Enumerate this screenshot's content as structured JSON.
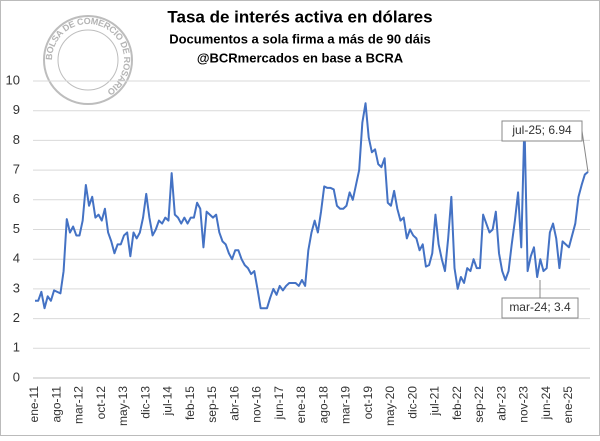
{
  "chart_data": {
    "type": "line",
    "title": "Tasa de interés activa en dólares",
    "subtitle": "Documentos a sola firma a más de 90 dáis",
    "source": "@BCRmercados en base a BCRA",
    "logo_text": "BOLSA DE COMERCIO DE ROSARIO",
    "color": "#4472c4",
    "ylim": [
      0,
      10
    ],
    "yticks": [
      0,
      1,
      2,
      3,
      4,
      5,
      6,
      7,
      8,
      9,
      10
    ],
    "grid": true,
    "categories": [
      "ene-11",
      null,
      null,
      null,
      null,
      null,
      null,
      "ago-11",
      null,
      null,
      null,
      null,
      null,
      null,
      "mar-12",
      null,
      null,
      null,
      null,
      null,
      null,
      "oct-12",
      null,
      null,
      null,
      null,
      null,
      null,
      "may-13",
      null,
      null,
      null,
      null,
      null,
      null,
      "dic-13",
      null,
      null,
      null,
      null,
      null,
      null,
      "jul-14",
      null,
      null,
      null,
      null,
      null,
      null,
      "feb-15",
      null,
      null,
      null,
      null,
      null,
      null,
      "sep-15",
      null,
      null,
      null,
      null,
      null,
      null,
      "abr-16",
      null,
      null,
      null,
      null,
      null,
      null,
      "nov-16",
      null,
      null,
      null,
      null,
      null,
      null,
      "jun-17",
      null,
      null,
      null,
      null,
      null,
      null,
      "ene-18",
      null,
      null,
      null,
      null,
      null,
      null,
      "ago-18",
      null,
      null,
      null,
      null,
      null,
      null,
      "mar-19",
      null,
      null,
      null,
      null,
      null,
      null,
      "oct-19",
      null,
      null,
      null,
      null,
      null,
      null,
      "may-20",
      null,
      null,
      null,
      null,
      null,
      null,
      "dic-20",
      null,
      null,
      null,
      null,
      null,
      null,
      "jul-21",
      null,
      null,
      null,
      null,
      null,
      null,
      "feb-22",
      null,
      null,
      null,
      null,
      null,
      null,
      "sep-22",
      null,
      null,
      null,
      null,
      null,
      null,
      "abr-23",
      null,
      null,
      null,
      null,
      null,
      null,
      "nov-23",
      null,
      null,
      null,
      null,
      null,
      null,
      "jun-24",
      null,
      null,
      null,
      null,
      null,
      null,
      "ene-25",
      null,
      null,
      null,
      null,
      null,
      null
    ],
    "values": [
      2.6,
      2.6,
      2.9,
      2.35,
      2.75,
      2.6,
      2.95,
      2.9,
      2.85,
      3.6,
      5.35,
      4.9,
      5.1,
      4.8,
      4.8,
      5.3,
      6.5,
      5.8,
      6.1,
      5.4,
      5.5,
      5.3,
      5.7,
      4.9,
      4.6,
      4.2,
      4.5,
      4.5,
      4.8,
      4.9,
      4.1,
      4.9,
      4.7,
      4.9,
      5.4,
      6.2,
      5.4,
      4.8,
      5.0,
      5.3,
      5.2,
      5.4,
      5.3,
      6.9,
      5.5,
      5.4,
      5.2,
      5.4,
      5.2,
      5.4,
      5.4,
      5.9,
      5.7,
      4.4,
      5.6,
      5.5,
      5.4,
      5.5,
      4.9,
      4.6,
      4.5,
      4.2,
      4.0,
      4.3,
      4.3,
      4.0,
      3.8,
      3.7,
      3.5,
      3.6,
      3.0,
      2.35,
      2.35,
      2.35,
      2.7,
      3.0,
      2.8,
      3.1,
      2.95,
      3.1,
      3.2,
      3.2,
      3.2,
      3.1,
      3.3,
      3.1,
      4.3,
      4.9,
      5.3,
      4.9,
      5.6,
      6.45,
      6.4,
      6.4,
      6.35,
      5.8,
      5.7,
      5.7,
      5.8,
      6.25,
      6.0,
      6.5,
      7.0,
      8.6,
      9.25,
      8.1,
      7.6,
      7.7,
      7.2,
      7.1,
      7.4,
      5.9,
      5.8,
      6.3,
      5.7,
      5.3,
      5.4,
      4.7,
      5.0,
      4.8,
      4.7,
      4.3,
      4.5,
      3.75,
      3.8,
      4.2,
      5.5,
      4.5,
      4.0,
      3.6,
      4.7,
      6.1,
      3.7,
      3.0,
      3.4,
      3.2,
      3.7,
      3.6,
      4.0,
      3.7,
      3.7,
      5.5,
      5.2,
      4.9,
      5.0,
      5.6,
      4.2,
      3.6,
      3.3,
      3.6,
      4.5,
      5.3,
      6.25,
      4.4,
      8.6,
      3.6,
      4.1,
      4.4,
      3.4,
      4.0,
      3.6,
      3.7,
      4.9,
      5.2,
      4.7,
      3.7,
      4.6,
      4.5,
      4.4,
      4.8,
      5.2,
      6.1,
      6.5,
      6.85,
      6.94
    ],
    "annotations": [
      {
        "text": "jul-25; 6.94"
      },
      {
        "text": "mar-24; 3.4"
      }
    ]
  }
}
